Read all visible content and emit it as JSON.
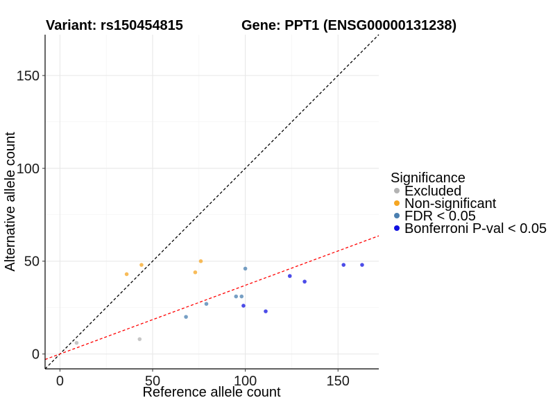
{
  "chart_data": {
    "type": "scatter",
    "title_left": "Variant: rs150454815",
    "title_right": "Gene: PPT1 (ENSG00000131238)",
    "xlabel": "Reference allele count",
    "ylabel": "Alternative allele count",
    "xlim": [
      -8,
      172
    ],
    "ylim": [
      -8,
      172
    ],
    "xticks": [
      0,
      50,
      100,
      150
    ],
    "yticks": [
      0,
      50,
      100,
      150
    ],
    "grid": true,
    "legend_position": "right",
    "legend_title": "Significance",
    "reference_lines": [
      {
        "label": "diagonal",
        "slope": 1,
        "intercept": 0,
        "color": "#000000",
        "dash": true
      },
      {
        "label": "fit",
        "slope": 0.37,
        "intercept": 0,
        "color": "#ff0000",
        "dash": true
      }
    ],
    "series": [
      {
        "name": "Excluded",
        "color": "#b3b3b3",
        "points": [
          [
            9,
            6
          ],
          [
            43,
            8
          ]
        ]
      },
      {
        "name": "Non-significant",
        "color": "#f5a623",
        "points": [
          [
            36,
            43
          ],
          [
            44,
            48
          ],
          [
            73,
            44
          ],
          [
            76,
            50
          ]
        ]
      },
      {
        "name": "FDR < 0.05",
        "color": "#4a7fb0",
        "points": [
          [
            68,
            20
          ],
          [
            79,
            27
          ],
          [
            95,
            31
          ],
          [
            98,
            31
          ],
          [
            100,
            46
          ]
        ]
      },
      {
        "name": "Bonferroni P-val < 0.05",
        "color": "#1010e0",
        "points": [
          [
            99,
            26
          ],
          [
            111,
            23
          ],
          [
            124,
            42
          ],
          [
            132,
            39
          ],
          [
            153,
            48
          ],
          [
            163,
            48
          ]
        ]
      }
    ]
  }
}
